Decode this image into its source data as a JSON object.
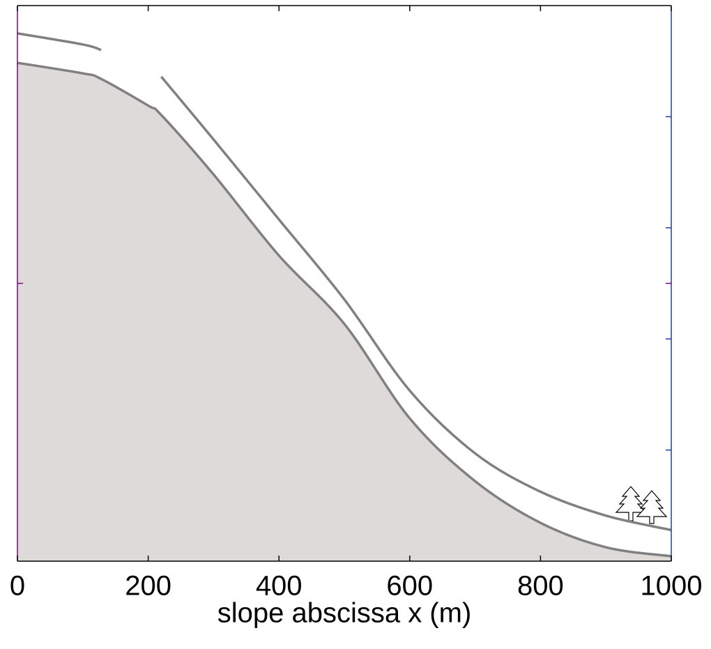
{
  "chart_data": {
    "type": "line",
    "x_label": "slope abscissa x (m)",
    "x": [
      0,
      100,
      128,
      200,
      220,
      300,
      400,
      500,
      600,
      700,
      800,
      900,
      1000
    ],
    "series": [
      {
        "color": "#808080",
        "fill": "#dedada",
        "values": [
          89.7,
          87.8,
          86.8,
          82,
          80.3,
          69.6,
          55,
          42.7,
          25.7,
          14.4,
          6.9,
          2.5,
          0.9
        ]
      },
      {
        "color": "#808080",
        "values": [
          95.0,
          93.0,
          92.0,
          null,
          87.2,
          75.9,
          61.5,
          47.1,
          30.7,
          19.4,
          12.5,
          8.2,
          5.6
        ]
      }
    ],
    "xlim": [
      0,
      1000
    ],
    "xticks": [
      0,
      200,
      400,
      600,
      800,
      1000
    ],
    "ylim": [
      0,
      100
    ],
    "yticks": [
      50
    ],
    "y2lim": [
      0,
      100
    ],
    "y2ticks": [
      20,
      40,
      60,
      80
    ],
    "left_axis_color": "#800080",
    "right_axis_color": "#1f3fa0"
  }
}
